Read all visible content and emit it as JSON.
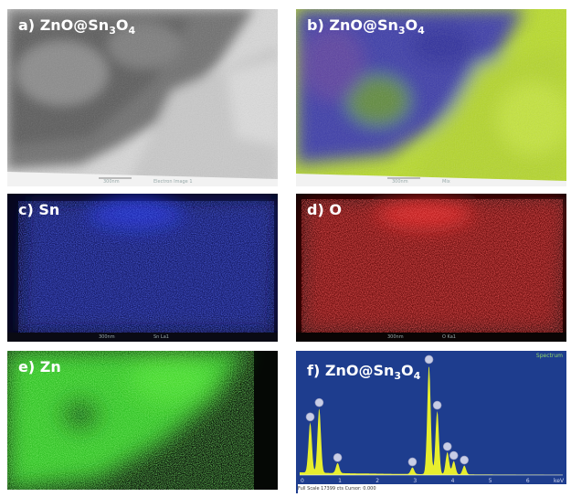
{
  "panels": {
    "a": {
      "prefix": "a)",
      "text": "ZnO@Sn",
      "sub1": "3",
      "mid": "O",
      "sub2": "4",
      "scale": "300nm",
      "caption": "Electron Image 1"
    },
    "b": {
      "prefix": "b)",
      "text": "ZnO@Sn",
      "sub1": "3",
      "mid": "O",
      "sub2": "4",
      "scale": "300nm",
      "caption": "Mix"
    },
    "c": {
      "prefix": "c)",
      "text": "Sn",
      "scale": "300nm",
      "caption": "Sn La1"
    },
    "d": {
      "prefix": "d)",
      "text": "O",
      "scale": "300nm",
      "caption": "O Ka1"
    },
    "e": {
      "prefix": "e)",
      "text": "Zn"
    },
    "f": {
      "prefix": "f)",
      "text": "ZnO@Sn",
      "sub1": "3",
      "mid": "O",
      "sub2": "4",
      "spectrum_label": "Spectrum",
      "footer": "Full Scale 17399 cts Cursor: 0.000",
      "axis_unit": "keV"
    }
  },
  "colors": {
    "sn_map": "#1c2bd0",
    "o_map": "#e11e1e",
    "zn_map": "#40d820",
    "spectrum_bg": "#1e3d8e",
    "spectrum_fill": "#e7ee2e",
    "peak_marker": "#c8cde6"
  },
  "chart_data": {
    "type": "area",
    "title": "",
    "xlabel": "keV",
    "ylabel": "",
    "xlim": [
      0,
      7
    ],
    "x_ticks": [
      0,
      1,
      2,
      3,
      4,
      5,
      6
    ],
    "peaks": [
      {
        "x": 0.28,
        "height": 0.45
      },
      {
        "x": 0.52,
        "height": 0.58
      },
      {
        "x": 1.01,
        "height": 0.09
      },
      {
        "x": 3.44,
        "height": 0.98
      },
      {
        "x": 3.66,
        "height": 0.57
      },
      {
        "x": 3.93,
        "height": 0.2
      },
      {
        "x": 4.1,
        "height": 0.12
      },
      {
        "x": 4.38,
        "height": 0.08
      },
      {
        "x": 3.0,
        "height": 0.06
      }
    ],
    "markers": [
      0.28,
      0.52,
      1.01,
      3.0,
      3.44,
      3.66,
      3.93,
      4.1,
      4.38
    ]
  }
}
